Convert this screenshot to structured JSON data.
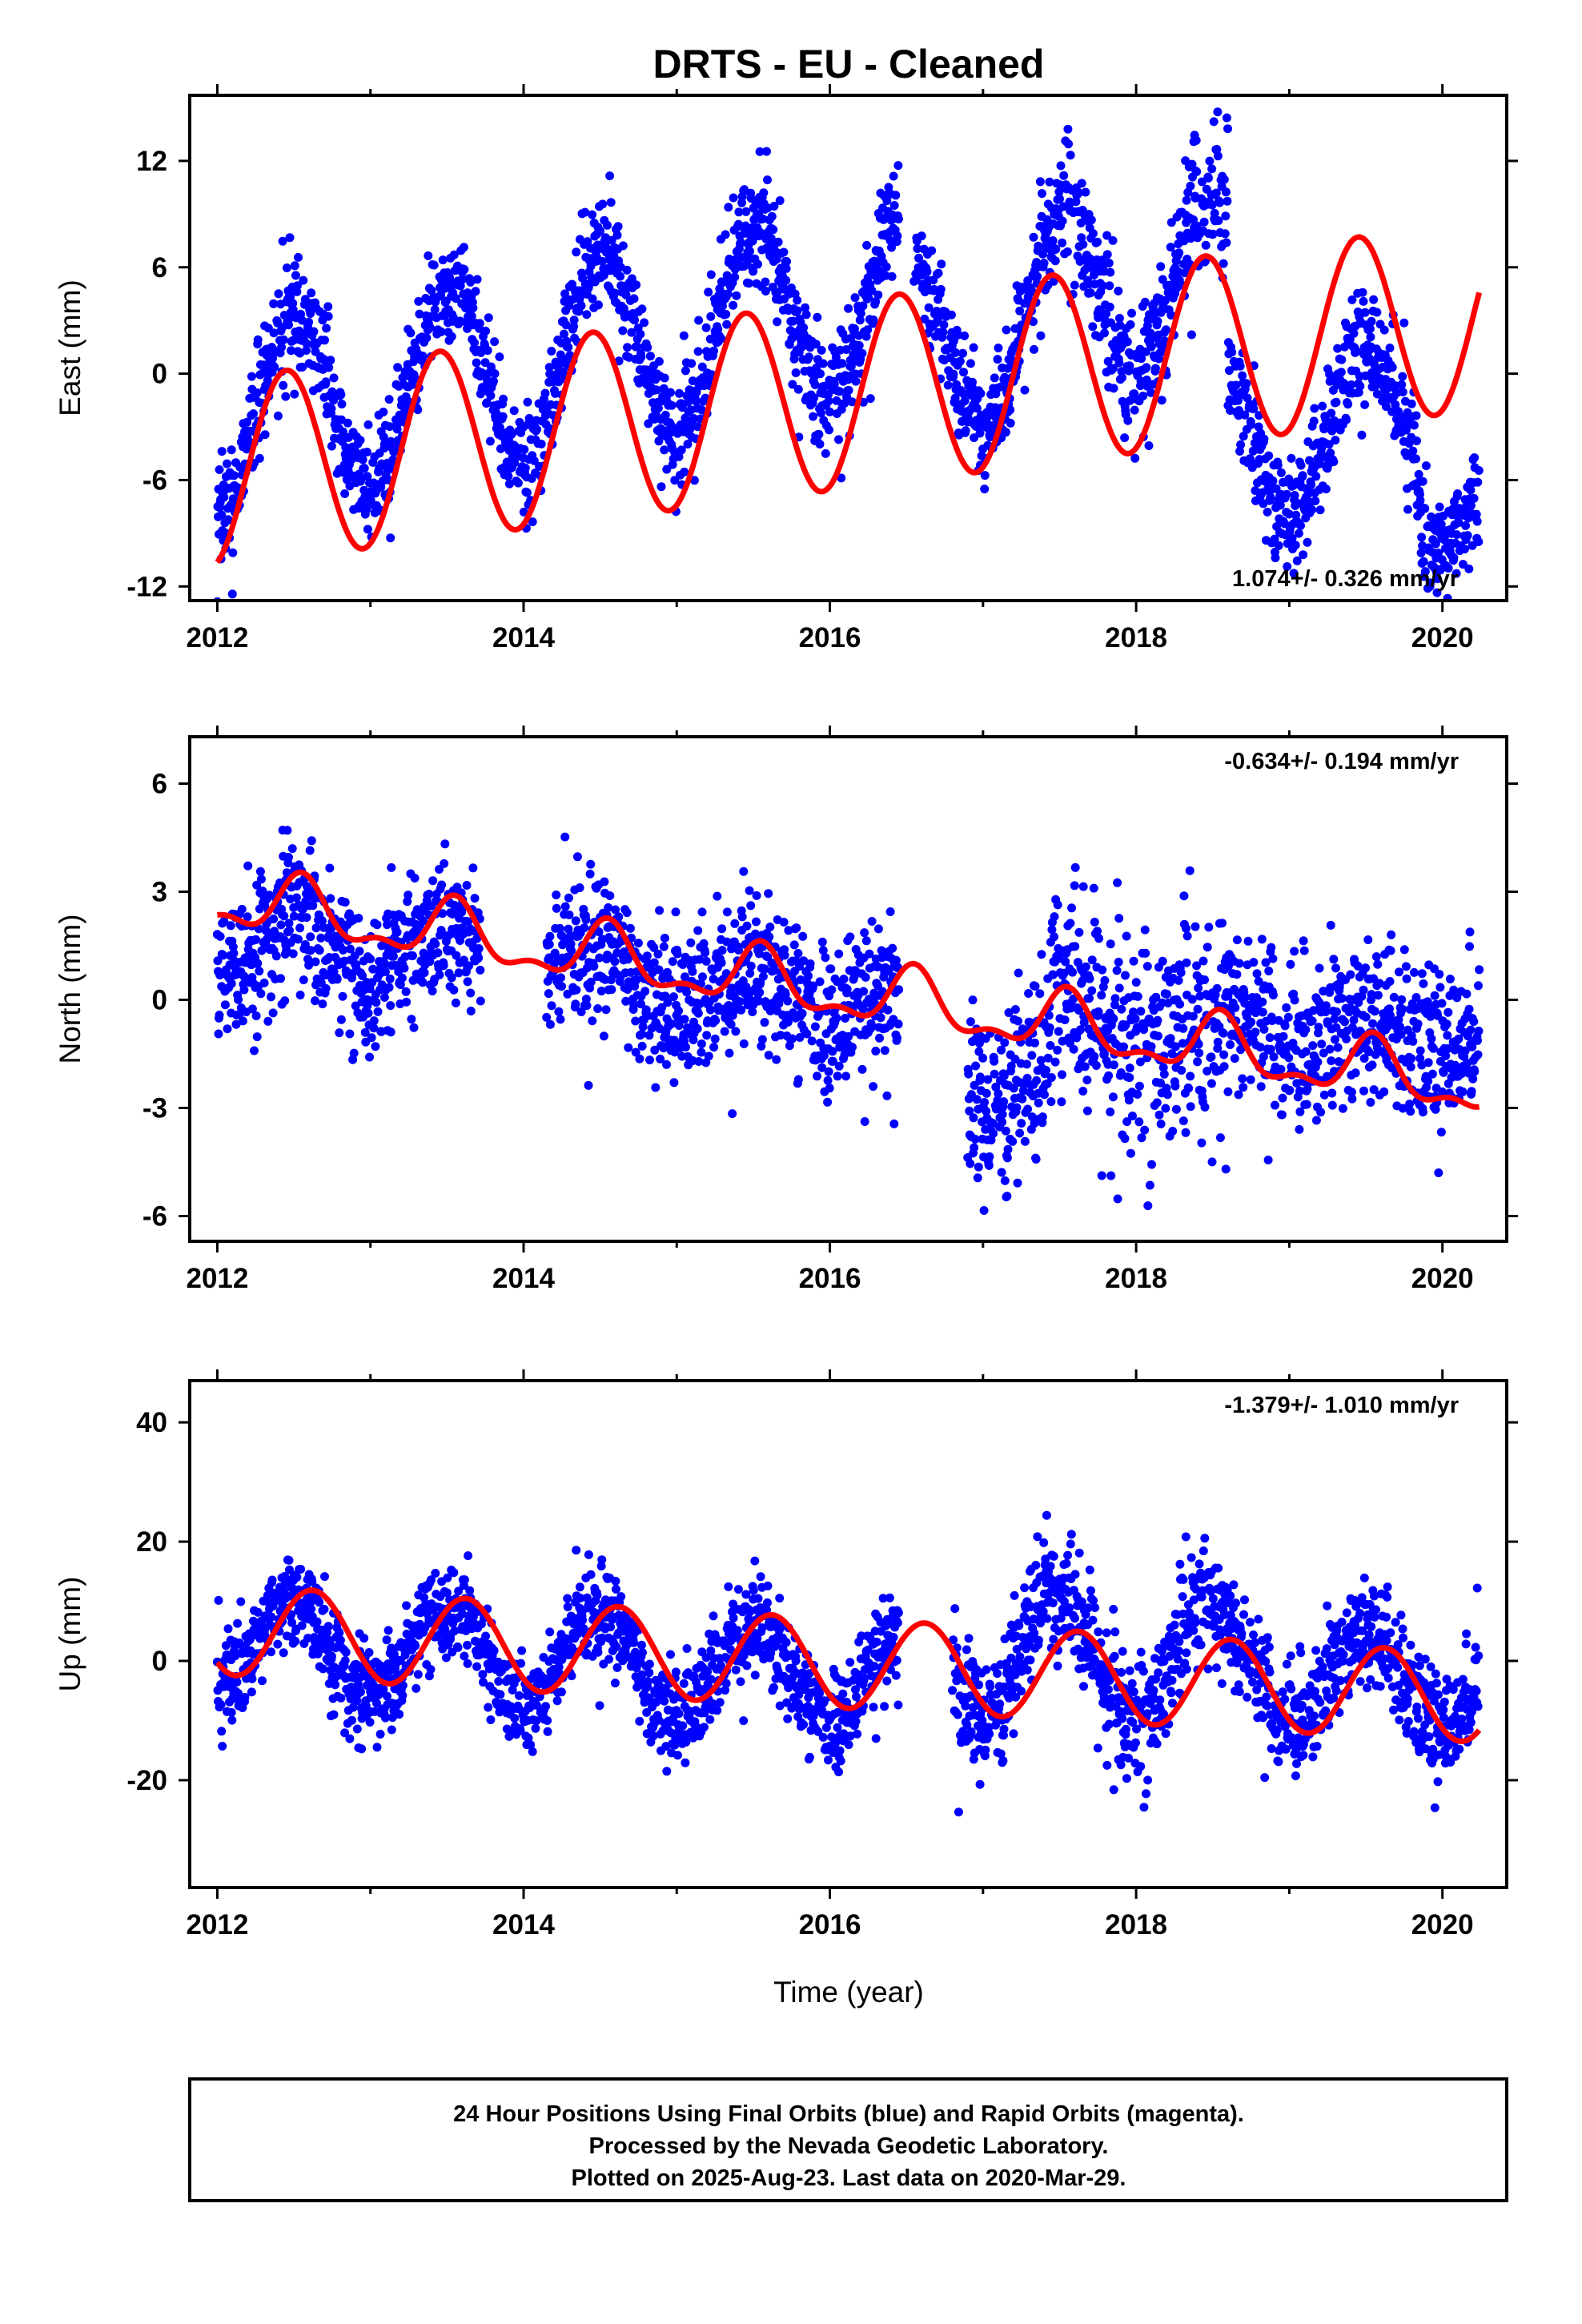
{
  "title": "DRTS  - EU - Cleaned",
  "xlabel": "Time (year)",
  "footer": [
    "24 Hour Positions Using Final Orbits (blue) and Rapid Orbits (magenta).",
    "Processed by the Nevada Geodetic Laboratory.",
    "Plotted on 2025-Aug-23. Last data on 2020-Mar-29."
  ],
  "colors": {
    "points": "#0000ff",
    "fit": "#ff0000",
    "frame": "#000000"
  },
  "chart_data": [
    {
      "type": "scatter",
      "ylabel": "East (mm)",
      "rate": "1.074+/- 0.326 mm/yr",
      "rate_position": "bottom-right",
      "xlim": [
        2011.82,
        2020.42
      ],
      "ylim": [
        -12.8,
        15.7
      ],
      "xticks": [
        "2012",
        "2014",
        "2016",
        "2018",
        "2020"
      ],
      "yticks": [
        "12",
        "6",
        "0",
        "-6",
        "-12"
      ],
      "ytick_values": [
        12,
        6,
        0,
        -6,
        -12
      ],
      "data_range": [
        2012.0,
        2020.24
      ],
      "series": [
        {
          "kind": "points",
          "segments": [
            {
              "start": 2012.0,
              "end": 2016.45,
              "offset": -2.6,
              "slope": 1.55,
              "amp": 5.3,
              "noise": 1.6
            },
            {
              "start": 2016.55,
              "end": 2017.5,
              "offset": 1.3,
              "slope": 2.2,
              "amp": 5.1,
              "noise": 1.6
            },
            {
              "start": 2017.5,
              "end": 2018.6,
              "offset": 5.0,
              "slope": 0.0,
              "amp": 5.0,
              "noise": 2.0
            },
            {
              "start": 2018.6,
              "end": 2019.85,
              "offset": -3.0,
              "slope": 0.0,
              "amp": 4.5,
              "noise": 1.6
            },
            {
              "start": 2019.85,
              "end": 2020.24,
              "offset": -7.5,
              "slope": 3.0,
              "amp": 2.6,
              "noise": 1.5
            }
          ]
        },
        {
          "kind": "fit",
          "offset": -1.3,
          "offset_year": 2016.0,
          "slope": 1.074,
          "annual_amp": 5.3,
          "annual_peak": 2012.45
        }
      ]
    },
    {
      "type": "scatter",
      "ylabel": "North (mm)",
      "rate": "-0.634+/- 0.194 mm/yr",
      "rate_position": "top-right",
      "xlim": [
        2011.82,
        2020.42
      ],
      "ylim": [
        -6.7,
        7.3
      ],
      "xticks": [
        "2012",
        "2014",
        "2016",
        "2018",
        "2020"
      ],
      "yticks": [
        "6",
        "3",
        "0",
        "-3",
        "-6"
      ],
      "ytick_values": [
        6,
        3,
        0,
        -3,
        -6
      ],
      "data_range": [
        2012.0,
        2020.24
      ],
      "series": [
        {
          "kind": "points",
          "segments": [
            {
              "start": 2012.0,
              "end": 2013.72,
              "offset": 1.7,
              "slope": -0.35,
              "amp": 0.8,
              "noise": 1.0
            },
            {
              "start": 2014.15,
              "end": 2016.45,
              "offset": 0.9,
              "slope": -0.55,
              "amp": 0.7,
              "noise": 1.0
            },
            {
              "start": 2016.9,
              "end": 2017.45,
              "offset": -2.5,
              "slope": 0.0,
              "amp": 0.6,
              "noise": 1.4
            },
            {
              "start": 2017.45,
              "end": 2018.6,
              "offset": 0.3,
              "slope": -1.6,
              "amp": 0.7,
              "noise": 1.6
            },
            {
              "start": 2018.6,
              "end": 2020.24,
              "offset": -0.7,
              "slope": -0.1,
              "amp": 0.6,
              "noise": 1.1
            }
          ]
        },
        {
          "kind": "fit",
          "offset": 0.25,
          "offset_year": 2016.0,
          "slope": -0.634,
          "annual_amp": 0.75,
          "annual_peak": 2012.55,
          "semi_amp": 0.35,
          "semi_peak": 2012.05
        }
      ]
    },
    {
      "type": "scatter",
      "ylabel": "Up (mm)",
      "rate": "-1.379+/- 1.010 mm/yr",
      "rate_position": "top-right",
      "xlim": [
        2011.82,
        2020.42
      ],
      "ylim": [
        -38,
        47
      ],
      "xticks": [
        "2012",
        "2014",
        "2016",
        "2018",
        "2020"
      ],
      "yticks": [
        "40",
        "20",
        "0",
        "-20"
      ],
      "ytick_values": [
        40,
        20,
        0,
        -20
      ],
      "data_range": [
        2012.0,
        2020.24
      ],
      "series": [
        {
          "kind": "points",
          "segments": [
            {
              "start": 2012.0,
              "end": 2016.45,
              "offset": 3.5,
              "slope": -1.6,
              "amp": 8.0,
              "noise": 4.0
            },
            {
              "start": 2016.8,
              "end": 2018.5,
              "offset": 1.0,
              "slope": 0.0,
              "amp": 11.0,
              "noise": 5.5
            },
            {
              "start": 2018.5,
              "end": 2020.24,
              "offset": -1.0,
              "slope": -1.2,
              "amp": 8.5,
              "noise": 4.5
            }
          ]
        },
        {
          "kind": "fit",
          "offset": -0.3,
          "offset_year": 2016.0,
          "slope": -1.379,
          "annual_amp": 7.5,
          "annual_peak": 2012.62
        }
      ]
    }
  ]
}
